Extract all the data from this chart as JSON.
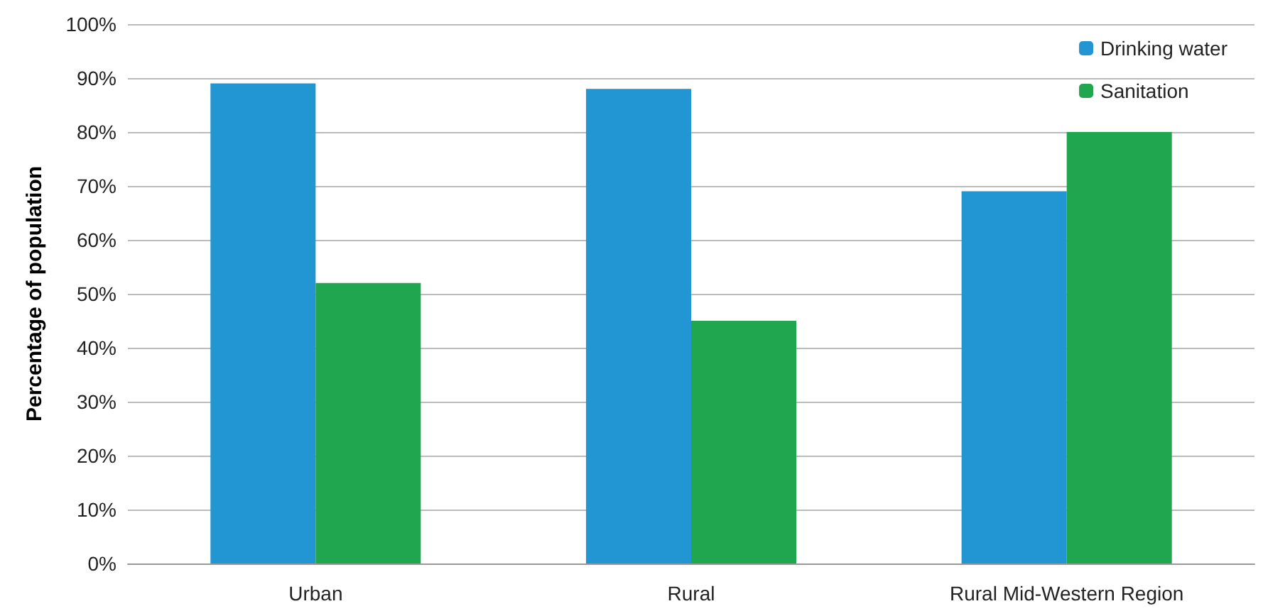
{
  "chart_data": {
    "type": "bar",
    "ylabel": "Percentage of population",
    "categories": [
      "Urban",
      "Rural",
      "Rural Mid-Western Region"
    ],
    "series": [
      {
        "name": "Drinking water",
        "color": "#2196d3",
        "values": [
          89,
          88,
          69
        ]
      },
      {
        "name": "Sanitation",
        "color": "#21a650",
        "values": [
          52,
          45,
          80
        ]
      }
    ],
    "ylim": [
      0,
      100
    ],
    "yticks": [
      {
        "value": 0,
        "label": "0%"
      },
      {
        "value": 10,
        "label": "10%"
      },
      {
        "value": 20,
        "label": "20%"
      },
      {
        "value": 30,
        "label": "30%"
      },
      {
        "value": 40,
        "label": "40%"
      },
      {
        "value": 50,
        "label": "50%"
      },
      {
        "value": 60,
        "label": "60%"
      },
      {
        "value": 70,
        "label": "70%"
      },
      {
        "value": 80,
        "label": "80%"
      },
      {
        "value": 90,
        "label": "90%"
      },
      {
        "value": 100,
        "label": "100%"
      }
    ],
    "grid": "y",
    "legend": "top right"
  }
}
